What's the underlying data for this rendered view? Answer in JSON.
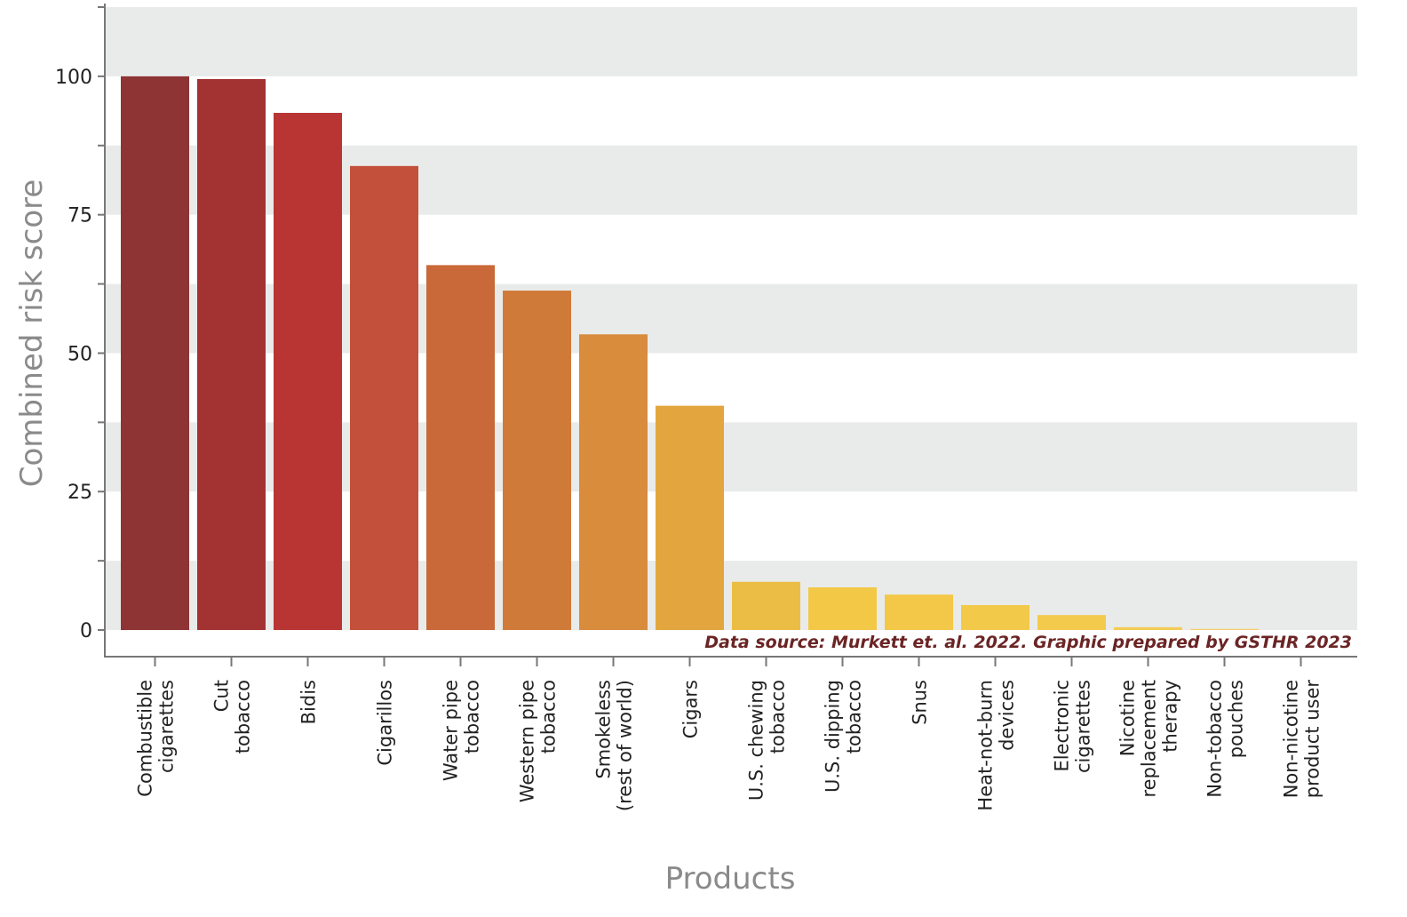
{
  "chart_data": {
    "type": "bar",
    "title": "",
    "xlabel": "Products",
    "ylabel": "Combined risk score",
    "ylim": [
      0,
      112.5
    ],
    "yticks": [
      0,
      25,
      50,
      75,
      100
    ],
    "grid": "alternating horizontal bands every 12.5",
    "categories": [
      [
        "Combustible",
        "cigarettes"
      ],
      [
        "Cut",
        "tobacco"
      ],
      [
        "Bidis"
      ],
      [
        "Cigarillos"
      ],
      [
        "Water pipe",
        "tobacco"
      ],
      [
        "Western pipe",
        "tobacco"
      ],
      [
        "Smokeless",
        "(rest of world)"
      ],
      [
        "Cigars"
      ],
      [
        "U.S. chewing",
        "tobacco"
      ],
      [
        "U.S. dipping",
        "tobacco"
      ],
      [
        "Snus"
      ],
      [
        "Heat-not-burn",
        "devices"
      ],
      [
        "Electronic",
        "cigarettes"
      ],
      [
        "Nicotine",
        "replacement",
        "therapy"
      ],
      [
        "Non-tobacco",
        "pouches"
      ],
      [
        "Non-nicotine",
        "product user"
      ]
    ],
    "values": [
      100,
      99.5,
      93.4,
      83.8,
      65.9,
      61.3,
      53.4,
      40.5,
      8.7,
      7.7,
      6.4,
      4.5,
      2.7,
      0.5,
      0.2,
      0
    ],
    "colors": [
      "#8f3434",
      "#a33232",
      "#b83533",
      "#c2503a",
      "#c96838",
      "#d07a3a",
      "#d88c3c",
      "#e3a63e",
      "#ecbd44",
      "#f3c846",
      "#f3c848",
      "#f3c94a",
      "#f3ca4c",
      "#f3cb55",
      "#f3cd70",
      "#f3cd80"
    ],
    "annotation": "Data source: Murkett et. al. 2022. Graphic prepared by GSTHR 2023"
  }
}
